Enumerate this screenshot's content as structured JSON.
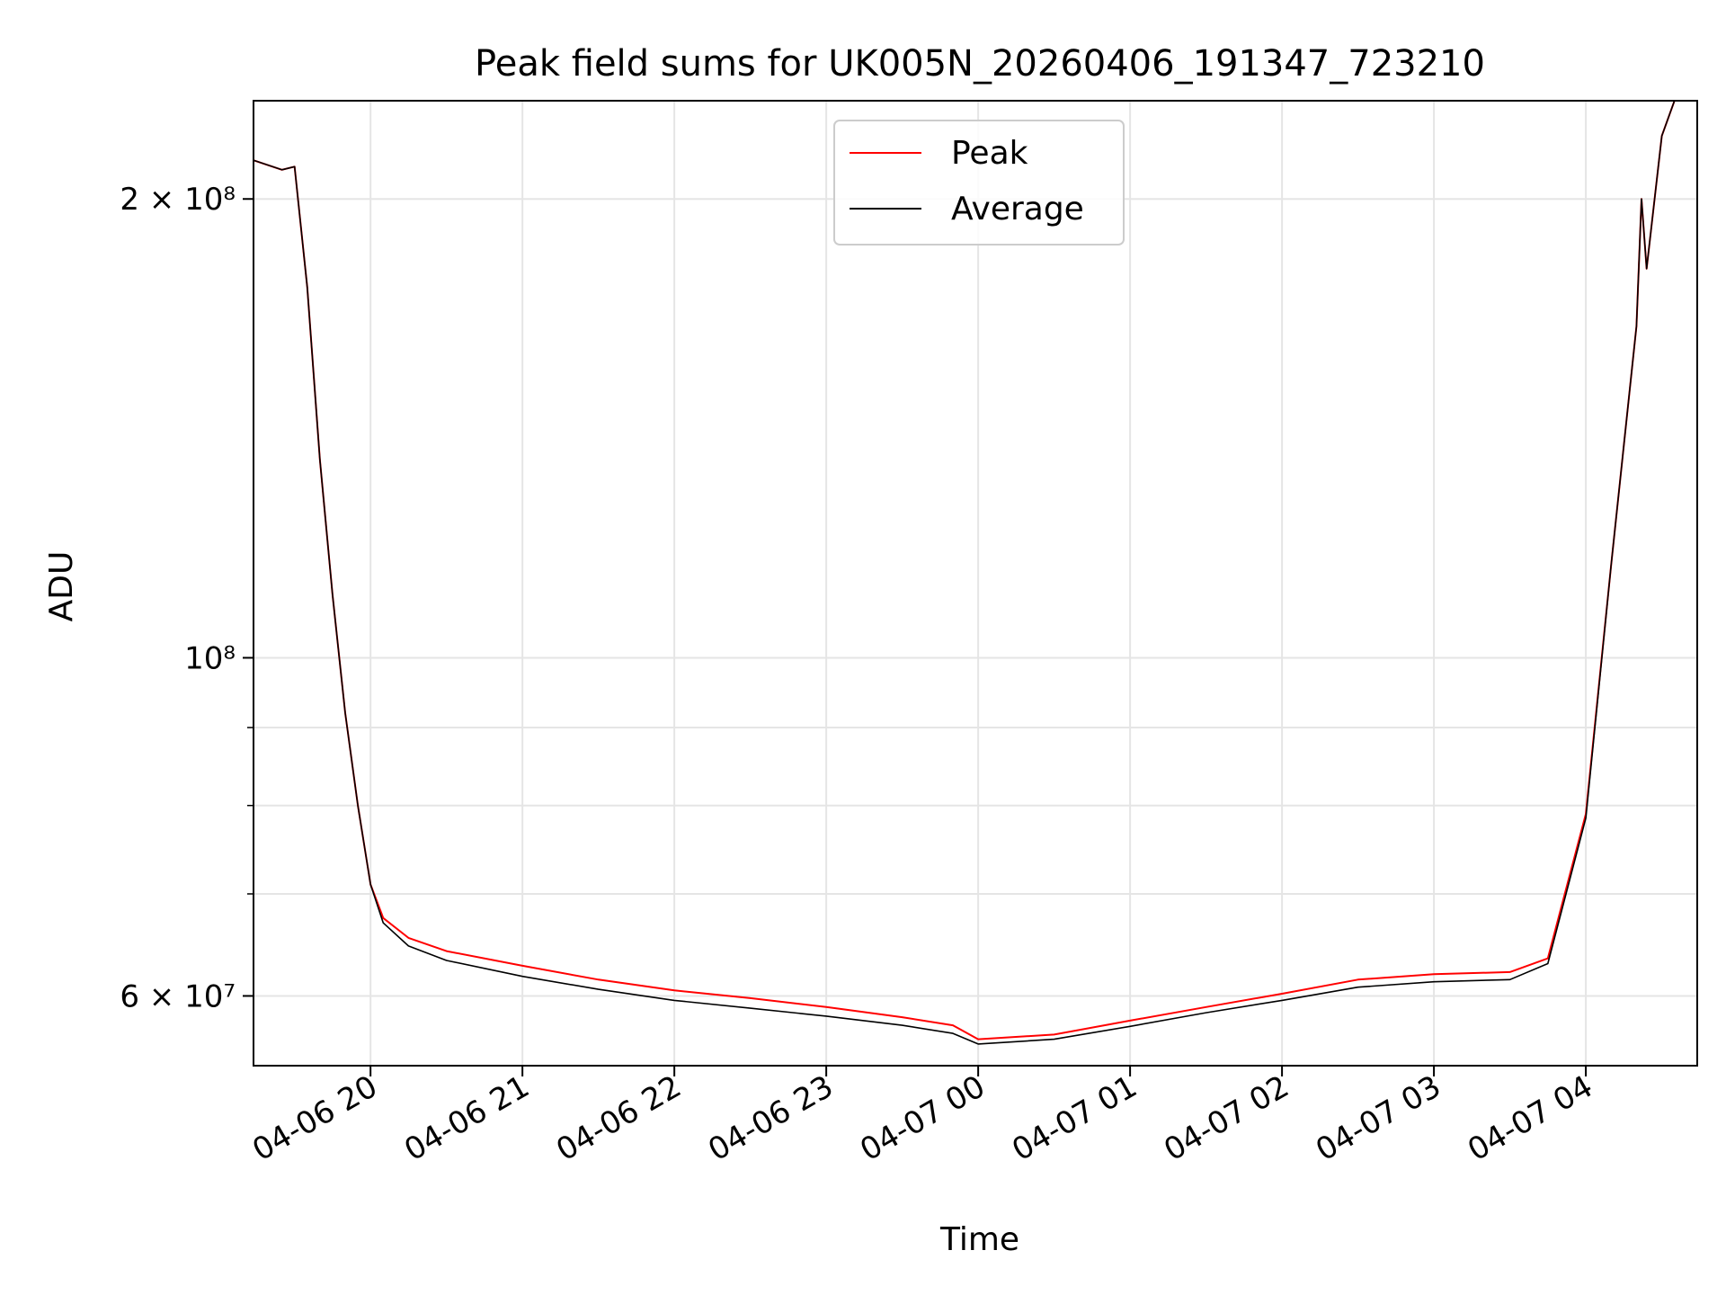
{
  "chart_data": {
    "type": "line",
    "title": "Peak field sums for UK005N_20260406_191347_723210",
    "xlabel": "Time",
    "ylabel": "ADU",
    "yscale": "log",
    "xlim": [
      "2026-04-06 19:13:47",
      "2026-04-07 04:44:00"
    ],
    "ylim": [
      54000000,
      232000000
    ],
    "grid": true,
    "legend_position": "upper-center",
    "x_ticks": [
      "04-06 20",
      "04-06 21",
      "04-06 22",
      "04-06 23",
      "04-07 00",
      "04-07 01",
      "04-07 02",
      "04-07 03",
      "04-07 04"
    ],
    "y_ticks": [
      {
        "value": 60000000,
        "label": "6 × 10⁷"
      },
      {
        "value": 100000000,
        "label": "10⁸"
      },
      {
        "value": 200000000,
        "label": "2 × 10⁸"
      }
    ],
    "series": [
      {
        "name": "Peak",
        "color": "#ff0000",
        "x": [
          "2026-04-06 19:14",
          "2026-04-06 19:25",
          "2026-04-06 19:30",
          "2026-04-06 19:35",
          "2026-04-06 19:40",
          "2026-04-06 19:45",
          "2026-04-06 19:50",
          "2026-04-06 19:55",
          "2026-04-06 20:00",
          "2026-04-06 20:05",
          "2026-04-06 20:15",
          "2026-04-06 20:30",
          "2026-04-06 21:00",
          "2026-04-06 21:30",
          "2026-04-06 22:00",
          "2026-04-06 22:30",
          "2026-04-06 23:00",
          "2026-04-06 23:30",
          "2026-04-06 23:50",
          "2026-04-07 00:00",
          "2026-04-07 00:30",
          "2026-04-07 01:00",
          "2026-04-07 01:30",
          "2026-04-07 02:00",
          "2026-04-07 02:30",
          "2026-04-07 03:00",
          "2026-04-07 03:30",
          "2026-04-07 03:45",
          "2026-04-07 04:00",
          "2026-04-07 04:10",
          "2026-04-07 04:20",
          "2026-04-07 04:22",
          "2026-04-07 04:24",
          "2026-04-07 04:30",
          "2026-04-07 04:35"
        ],
        "y": [
          212000000,
          209000000,
          210000000,
          175000000,
          135000000,
          110000000,
          92000000,
          80000000,
          71000000,
          67500000,
          65500000,
          64200000,
          62800000,
          61500000,
          60500000,
          59800000,
          59000000,
          58100000,
          57400000,
          56200000,
          56600000,
          57800000,
          59000000,
          60200000,
          61500000,
          62000000,
          62200000,
          63500000,
          79000000,
          115000000,
          165000000,
          200000000,
          180000000,
          220000000,
          232000000
        ]
      },
      {
        "name": "Average",
        "color": "#000000",
        "x": [
          "2026-04-06 19:14",
          "2026-04-06 19:25",
          "2026-04-06 19:30",
          "2026-04-06 19:35",
          "2026-04-06 19:40",
          "2026-04-06 19:45",
          "2026-04-06 19:50",
          "2026-04-06 19:55",
          "2026-04-06 20:00",
          "2026-04-06 20:05",
          "2026-04-06 20:15",
          "2026-04-06 20:30",
          "2026-04-06 21:00",
          "2026-04-06 21:30",
          "2026-04-06 22:00",
          "2026-04-06 22:30",
          "2026-04-06 23:00",
          "2026-04-06 23:30",
          "2026-04-06 23:50",
          "2026-04-07 00:00",
          "2026-04-07 00:30",
          "2026-04-07 01:00",
          "2026-04-07 01:30",
          "2026-04-07 02:00",
          "2026-04-07 02:30",
          "2026-04-07 03:00",
          "2026-04-07 03:30",
          "2026-04-07 03:45",
          "2026-04-07 04:00",
          "2026-04-07 04:10",
          "2026-04-07 04:20",
          "2026-04-07 04:22",
          "2026-04-07 04:24",
          "2026-04-07 04:30",
          "2026-04-07 04:35"
        ],
        "y": [
          212000000,
          209000000,
          210000000,
          175000000,
          135000000,
          110000000,
          92000000,
          80000000,
          71000000,
          67000000,
          64700000,
          63300000,
          61800000,
          60600000,
          59600000,
          58900000,
          58200000,
          57400000,
          56700000,
          55800000,
          56200000,
          57300000,
          58500000,
          59600000,
          60800000,
          61300000,
          61500000,
          63000000,
          78500000,
          115000000,
          165000000,
          200000000,
          180000000,
          220000000,
          232000000
        ]
      }
    ]
  }
}
